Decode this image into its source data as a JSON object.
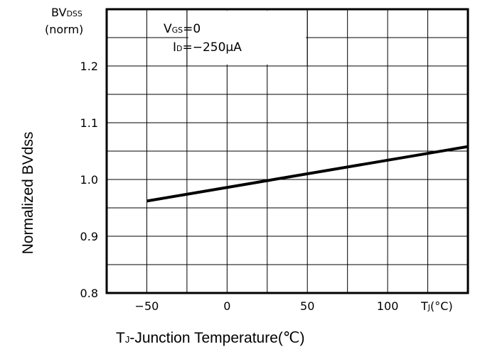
{
  "chart_data": {
    "type": "line",
    "ylabel": "Normalized BVdss",
    "xlabel_main": "T",
    "xlabel_sub": "J",
    "xlabel_rest": "-Junction Temperature(℃)",
    "y_unit_main": "BV",
    "y_unit_sub": "DSS",
    "y_unit_norm": "(norm)",
    "x_unit_main": "T",
    "x_unit_sub": "J",
    "x_unit_rest": "(°C)",
    "annotation": {
      "line1_main": "V",
      "line1_sub": "GS",
      "line1_rest": "=0",
      "line2_main": "I",
      "line2_sub": "D",
      "line2_rest": "=−250μA"
    },
    "xlim": [
      -75,
      150
    ],
    "ylim": [
      0.8,
      1.3
    ],
    "x_ticks": [
      -50,
      0,
      50,
      100
    ],
    "x_tick_labels": [
      "−50",
      "0",
      "50",
      "100"
    ],
    "y_ticks": [
      0.8,
      0.9,
      1.0,
      1.1,
      1.2
    ],
    "y_tick_labels": [
      "0.8",
      "0.9",
      "1.0",
      "1.1",
      "1.2"
    ],
    "grid": true,
    "series": [
      {
        "x": [
          -50,
          150
        ],
        "y": [
          0.962,
          1.058
        ]
      }
    ]
  },
  "colors": {
    "line": "#000000",
    "grid": "#000000",
    "background": "#ffffff"
  }
}
